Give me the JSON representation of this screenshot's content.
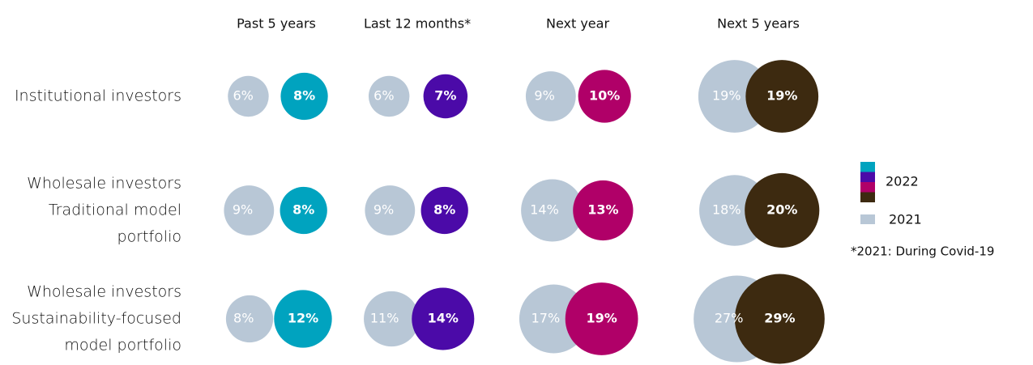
{
  "chart_data": {
    "type": "bubble",
    "columns": [
      "Past 5 years",
      "Last 12 months*",
      "Next year",
      "Next 5 years"
    ],
    "rows": [
      [
        "Institutional investors"
      ],
      [
        "Wholesale investors",
        "Traditional model",
        "portfolio"
      ],
      [
        "Wholesale investors",
        "Sustainability-focused",
        "model portfolio"
      ]
    ],
    "series": [
      {
        "name": "2022",
        "colors": [
          "#00a3bf",
          "#4b0aa8",
          "#b00068",
          "#3d2a10"
        ],
        "values": [
          [
            8,
            7,
            10,
            19
          ],
          [
            8,
            8,
            13,
            20
          ],
          [
            12,
            14,
            19,
            29
          ]
        ],
        "value_labels": [
          [
            "8%",
            "7%",
            "10%",
            "19%"
          ],
          [
            "8%",
            "8%",
            "13%",
            "20%"
          ],
          [
            "12%",
            "14%",
            "19%",
            "29%"
          ]
        ]
      },
      {
        "name": "2021",
        "color": "#b8c7d6",
        "values": [
          [
            6,
            6,
            9,
            19
          ],
          [
            9,
            9,
            14,
            18
          ],
          [
            8,
            11,
            17,
            27
          ]
        ],
        "value_labels": [
          [
            "6%",
            "6%",
            "9%",
            "19%"
          ],
          [
            "9%",
            "9%",
            "14%",
            "18%"
          ],
          [
            "8%",
            "11%",
            "17%",
            "27%"
          ]
        ]
      }
    ],
    "note": "*2021: During Covid-19"
  }
}
